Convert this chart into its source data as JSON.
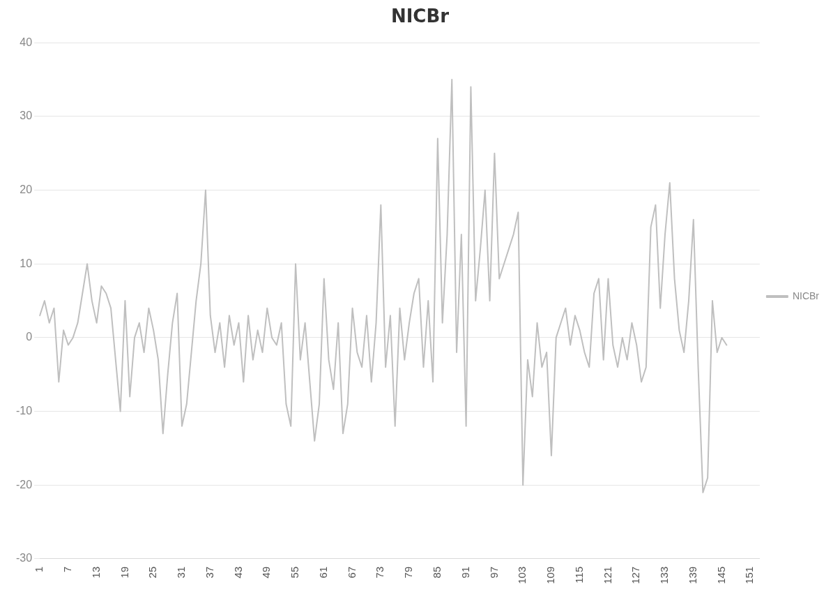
{
  "chart_data": {
    "type": "line",
    "title": "NICBr",
    "categories": [
      "1",
      null,
      null,
      null,
      null,
      null,
      "7",
      null,
      null,
      null,
      null,
      null,
      "13",
      null,
      null,
      null,
      null,
      null,
      "19",
      null,
      null,
      null,
      null,
      null,
      "25",
      null,
      null,
      null,
      null,
      null,
      "31",
      null,
      null,
      null,
      null,
      null,
      "37",
      null,
      null,
      null,
      null,
      null,
      "43",
      null,
      null,
      null,
      null,
      null,
      "49",
      null,
      null,
      null,
      null,
      null,
      "55",
      null,
      null,
      null,
      null,
      null,
      "61",
      null,
      null,
      null,
      null,
      null,
      "67",
      null,
      null,
      null,
      null,
      null,
      "73",
      null,
      null,
      null,
      null,
      null,
      "79",
      null,
      null,
      null,
      null,
      null,
      "85",
      null,
      null,
      null,
      null,
      null,
      "91",
      null,
      null,
      null,
      null,
      null,
      "97",
      null,
      null,
      null,
      null,
      null,
      "103",
      null,
      null,
      null,
      null,
      null,
      "109",
      null,
      null,
      null,
      null,
      null,
      "115",
      null,
      null,
      null,
      null,
      null,
      "121",
      null,
      null,
      null,
      null,
      null,
      "127",
      null,
      null,
      null,
      null,
      null,
      "133",
      null,
      null,
      null,
      null,
      null,
      "139",
      null,
      null,
      null,
      null,
      null,
      "145",
      null,
      null,
      null,
      null,
      null,
      "151",
      null,
      null
    ],
    "series": [
      {
        "name": "NICBr",
        "color": "#bfbfbf",
        "values": [
          3,
          5,
          2,
          4,
          -6,
          1,
          -1,
          0,
          2,
          6,
          10,
          5,
          2,
          7,
          6,
          4,
          -3,
          -10,
          5,
          -8,
          0,
          2,
          -2,
          4,
          1,
          -3,
          -13,
          -5,
          2,
          6,
          -12,
          -9,
          -2,
          5,
          10,
          20,
          3,
          -2,
          2,
          -4,
          3,
          -1,
          2,
          -6,
          3,
          -3,
          1,
          -2,
          4,
          0,
          -1,
          2,
          -9,
          -12,
          10,
          -3,
          2,
          -6,
          -14,
          -9,
          8,
          -3,
          -7,
          2,
          -13,
          -9,
          4,
          -2,
          -4,
          3,
          -6,
          2,
          18,
          -4,
          3,
          -12,
          4,
          -3,
          2,
          6,
          8,
          -4,
          5,
          -6,
          27,
          2,
          14,
          35,
          -2,
          14,
          -12,
          34,
          5,
          12,
          20,
          5,
          25,
          8,
          10,
          12,
          14,
          17,
          -20,
          -3,
          -8,
          2,
          -4,
          -2,
          -16,
          0,
          2,
          4,
          -1,
          3,
          1,
          -2,
          -4,
          6,
          8,
          -3,
          8,
          -1,
          -4,
          0,
          -3,
          2,
          -1,
          -6,
          -4,
          15,
          18,
          4,
          14,
          21,
          8,
          1,
          -2,
          5,
          16,
          -4,
          -21,
          -19,
          5,
          -2,
          0,
          -1,
          null,
          null,
          null,
          null,
          null,
          null,
          null
        ]
      }
    ],
    "ylim": [
      -30,
      40
    ],
    "yticks": [
      -30,
      -20,
      -10,
      0,
      10,
      20,
      30,
      40
    ],
    "grid": "y",
    "legend": "right",
    "marker": "none",
    "line_style": "solid"
  }
}
